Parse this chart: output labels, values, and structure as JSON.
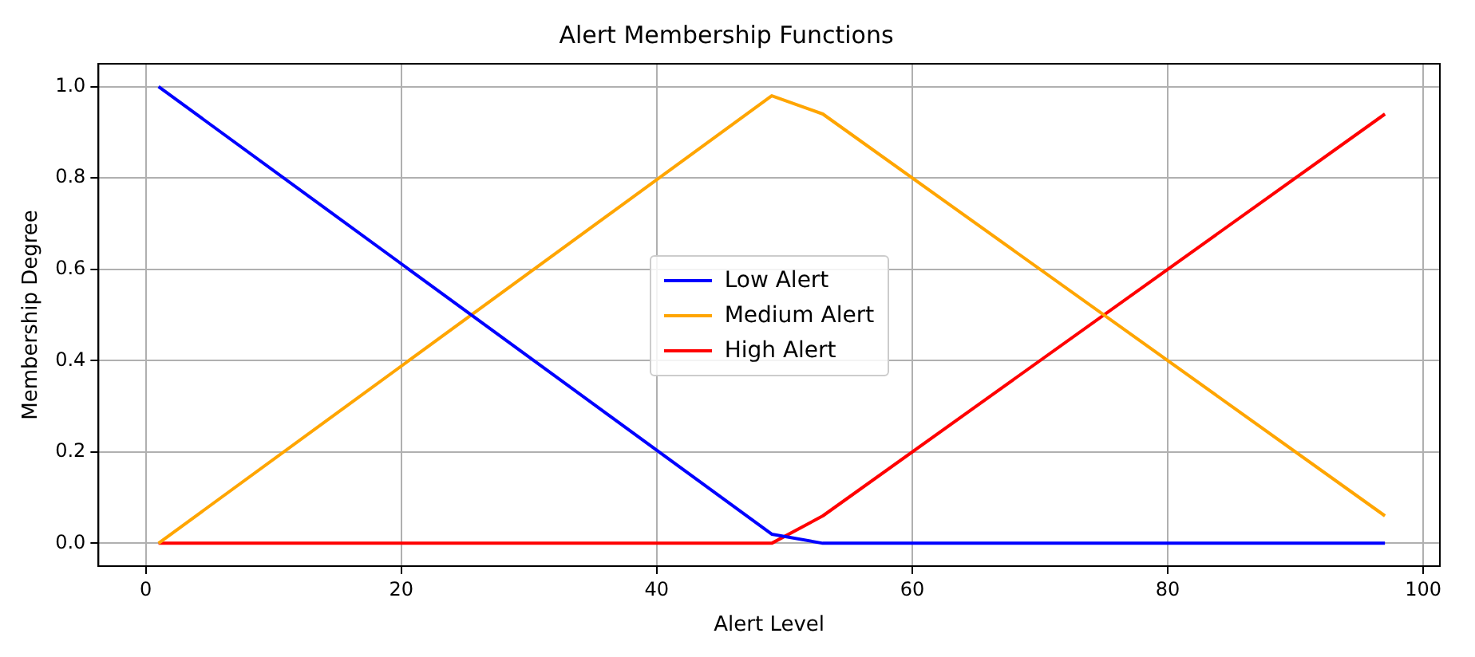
{
  "chart_data": {
    "type": "line",
    "title": "Alert Membership Functions",
    "xlabel": "Alert Level",
    "ylabel": "Membership Degree",
    "xlim": [
      -3.7,
      101.3
    ],
    "xticks": [
      0,
      20,
      40,
      60,
      80,
      100
    ],
    "ylim": [
      -0.05,
      1.05
    ],
    "yticks": [
      {
        "value": 0,
        "label": "0.0"
      },
      0.2,
      0.4,
      0.6,
      0.8,
      {
        "value": 1,
        "label": "1.0"
      }
    ],
    "grid": true,
    "legend": "center",
    "marker": "none",
    "line_style": "solid",
    "series": [
      {
        "name": "Low Alert",
        "color": "#0000ff",
        "x": [
          1,
          49,
          53,
          97
        ],
        "values": [
          1.0,
          0.02,
          0,
          0
        ]
      },
      {
        "name": "Medium Alert",
        "color": "#ffa500",
        "x": [
          1,
          49,
          53,
          97
        ],
        "values": [
          0,
          0.98,
          0.94,
          0.06
        ]
      },
      {
        "name": "High Alert",
        "color": "#ff0000",
        "x": [
          1,
          49,
          53,
          97
        ],
        "values": [
          0,
          0,
          0.06,
          0.94
        ]
      }
    ]
  }
}
